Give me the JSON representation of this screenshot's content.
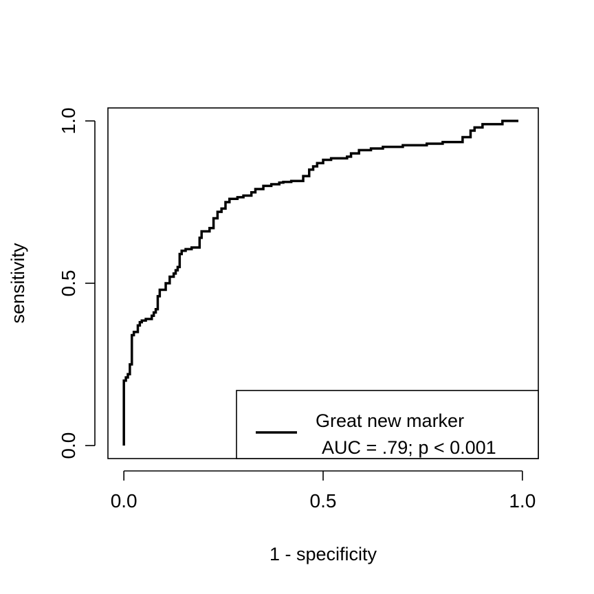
{
  "chart_data": {
    "type": "line",
    "title": "",
    "xlabel": "1 - specificity",
    "ylabel": "sensitivity",
    "xlim": [
      -0.04,
      1.04
    ],
    "ylim": [
      -0.04,
      1.04
    ],
    "x_ticks": [
      0.0,
      0.5,
      1.0
    ],
    "x_tick_labels": [
      "0.0",
      "0.5",
      "1.0"
    ],
    "y_ticks": [
      0.0,
      0.5,
      1.0
    ],
    "y_tick_labels": [
      "0.0",
      "0.5",
      "1.0"
    ],
    "grid": false,
    "legend": {
      "position": "bottom-right",
      "line1": "Great new marker",
      "line2": "AUC = .79; p < 0.001"
    },
    "series": [
      {
        "name": "Great new marker",
        "color": "#000000",
        "step": true,
        "x": [
          0.0,
          0.0,
          0.0,
          0.005,
          0.01,
          0.015,
          0.02,
          0.025,
          0.035,
          0.04,
          0.045,
          0.055,
          0.07,
          0.075,
          0.08,
          0.085,
          0.09,
          0.105,
          0.115,
          0.125,
          0.13,
          0.135,
          0.14,
          0.145,
          0.155,
          0.17,
          0.19,
          0.195,
          0.215,
          0.225,
          0.235,
          0.245,
          0.255,
          0.265,
          0.285,
          0.3,
          0.32,
          0.33,
          0.35,
          0.37,
          0.39,
          0.4,
          0.42,
          0.45,
          0.465,
          0.475,
          0.485,
          0.5,
          0.52,
          0.56,
          0.57,
          0.59,
          0.62,
          0.65,
          0.7,
          0.76,
          0.8,
          0.85,
          0.87,
          0.88,
          0.9,
          0.95,
          0.99
        ],
        "y": [
          0.0,
          0.09,
          0.2,
          0.21,
          0.22,
          0.25,
          0.34,
          0.35,
          0.37,
          0.38,
          0.385,
          0.39,
          0.4,
          0.41,
          0.42,
          0.46,
          0.48,
          0.5,
          0.52,
          0.53,
          0.54,
          0.55,
          0.59,
          0.6,
          0.605,
          0.61,
          0.64,
          0.66,
          0.67,
          0.7,
          0.72,
          0.73,
          0.75,
          0.76,
          0.765,
          0.77,
          0.78,
          0.79,
          0.8,
          0.805,
          0.81,
          0.812,
          0.815,
          0.83,
          0.85,
          0.86,
          0.87,
          0.88,
          0.885,
          0.89,
          0.9,
          0.91,
          0.915,
          0.92,
          0.925,
          0.93,
          0.935,
          0.95,
          0.97,
          0.98,
          0.99,
          1.0,
          1.0
        ]
      }
    ]
  }
}
